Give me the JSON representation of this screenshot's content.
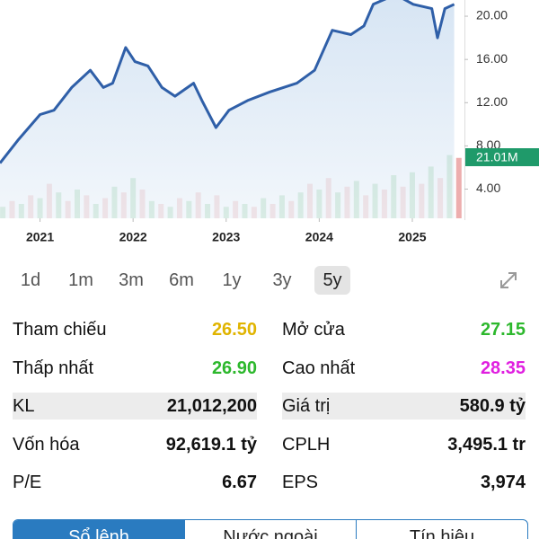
{
  "chart_data": {
    "type": "line",
    "x": [
      2020.57,
      2020.76,
      2021.0,
      2021.15,
      2021.34,
      2021.54,
      2021.68,
      2021.78,
      2021.92,
      2022.02,
      2022.16,
      2022.31,
      2022.45,
      2022.65,
      2022.74,
      2022.89,
      2023.03,
      2023.23,
      2023.47,
      2023.76,
      2023.95,
      2024.14,
      2024.34,
      2024.48,
      2024.58,
      2024.82,
      2025.01,
      2025.21,
      2025.27,
      2025.35,
      2025.45
    ],
    "series": [
      {
        "color": "#2f5fa8",
        "values": [
          6.4,
          8.5,
          10.9,
          11.3,
          13.4,
          15.0,
          13.4,
          13.8,
          17.1,
          15.8,
          15.4,
          13.4,
          12.6,
          13.8,
          12.2,
          9.7,
          11.3,
          12.2,
          13.0,
          13.8,
          15.0,
          18.7,
          18.3,
          19.1,
          21.1,
          22.0,
          21.1,
          20.7,
          18.0,
          20.7,
          21.1
        ]
      }
    ],
    "volume": {
      "x": [
        2020.6,
        2020.7,
        2020.8,
        2020.9,
        2021.0,
        2021.1,
        2021.2,
        2021.3,
        2021.4,
        2021.5,
        2021.6,
        2021.7,
        2021.8,
        2021.9,
        2022.0,
        2022.1,
        2022.2,
        2022.3,
        2022.4,
        2022.5,
        2022.6,
        2022.7,
        2022.8,
        2022.9,
        2023.0,
        2023.1,
        2023.2,
        2023.3,
        2023.4,
        2023.5,
        2023.6,
        2023.7,
        2023.8,
        2023.9,
        2024.0,
        2024.1,
        2024.2,
        2024.3,
        2024.4,
        2024.5,
        2024.6,
        2024.7,
        2024.8,
        2024.9,
        2025.0,
        2025.1,
        2025.2,
        2025.3,
        2025.4,
        2025.5
      ],
      "values": [
        4,
        6,
        5,
        8,
        7,
        12,
        9,
        6,
        10,
        8,
        5,
        7,
        11,
        9,
        14,
        10,
        6,
        5,
        4,
        7,
        6,
        9,
        5,
        8,
        4,
        6,
        5,
        4,
        7,
        5,
        8,
        6,
        9,
        12,
        10,
        14,
        9,
        11,
        13,
        8,
        12,
        10,
        15,
        11,
        16,
        12,
        18,
        14,
        22,
        21.01
      ],
      "colors": [
        "#7cc48a",
        "#e89a9a"
      ]
    },
    "volume_label": "21.01M",
    "xlim": [
      2020.57,
      2025.56
    ],
    "xticks": [
      2021,
      2022,
      2023,
      2024,
      2025
    ],
    "ylim": [
      1.3,
      21.5
    ],
    "yticks": [
      {
        "value": 20,
        "label": "20.00"
      },
      {
        "value": 16,
        "label": "16.00"
      },
      {
        "value": 12,
        "label": "12.00"
      },
      {
        "value": 8,
        "label": "8.00"
      },
      {
        "value": 4,
        "label": "4.00"
      }
    ]
  },
  "timeframes": [
    "1d",
    "1m",
    "3m",
    "6m",
    "1y",
    "3y",
    "5y"
  ],
  "selected_timeframe": 6,
  "stats": [
    [
      {
        "label": "Tham chiếu",
        "value": "26.50",
        "color": "#e0b400"
      },
      {
        "label": "Mở cửa",
        "value": "27.15",
        "color": "#2db82d"
      }
    ],
    [
      {
        "label": "Thấp nhất",
        "value": "26.90",
        "color": "#2db82d"
      },
      {
        "label": "Cao nhất",
        "value": "28.35",
        "color": "#e020e0"
      }
    ],
    [
      {
        "label": "KL",
        "value": "21,012,200",
        "color": "#111",
        "shaded": true
      },
      {
        "label": "Giá trị",
        "value": "580.9 tỷ",
        "color": "#111",
        "shaded": true
      }
    ],
    [
      {
        "label": "Vốn hóa",
        "value": "92,619.1 tỷ",
        "color": "#111"
      },
      {
        "label": "CPLH",
        "value": "3,495.1 tr",
        "color": "#111"
      }
    ],
    [
      {
        "label": "P/E",
        "value": "6.67",
        "color": "#111"
      },
      {
        "label": "EPS",
        "value": "3,974",
        "color": "#111"
      }
    ]
  ],
  "tabs": [
    "Sổ lệnh",
    "Nước ngoài",
    "Tín hiệu"
  ],
  "selected_tab": 0
}
